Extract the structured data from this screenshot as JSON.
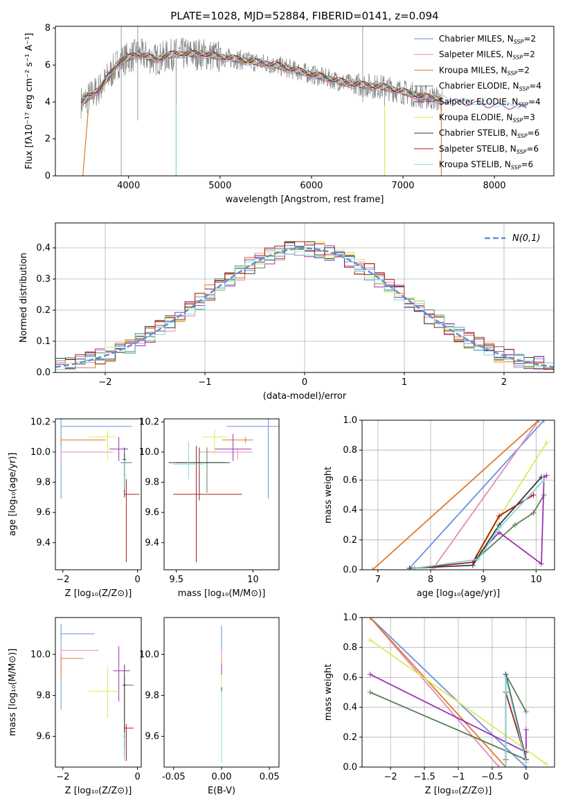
{
  "title": "PLATE=1028, MJD=52884, FIBERID=0141, z=0.094",
  "legend_top": [
    "Chabrier MILES, N_SSP=2",
    "Salpeter MILES, N_SSP=2",
    "Kroupa MILES, N_SSP=2",
    "Chabrier ELODIE, N_SSP=4",
    "Salpeter ELODIE, N_SSP=4",
    "Kroupa ELODIE, N_SSP=3",
    "Chabrier STELIB, N_SSP=6",
    "Salpeter STELIB, N_SSP=6",
    "Kroupa STELIB, N_SSP=6"
  ],
  "colors": {
    "c1": "#6b8ee0",
    "c2": "#e08bb8",
    "c3": "#e07b2a",
    "c4": "#5a7d5a",
    "c5": "#9b30b0",
    "c6": "#d6ec5a",
    "c7": "#3a3a3a",
    "c8": "#b01818",
    "c9": "#7ed8d8",
    "data": "#808080",
    "normal": "#5b8fd8"
  },
  "chart_data": [
    {
      "type": "line",
      "title": "PLATE=1028, MJD=52884, FIBERID=0141, z=0.094",
      "xlabel": "wavelength [Angstrom, rest frame]",
      "ylabel": "Flux [fλ10^-17 erg cm^-2 s^-1 A^-1]",
      "xlim": [
        3200,
        8650
      ],
      "ylim": [
        0,
        8.1
      ],
      "xticks": [
        4000,
        5000,
        6000,
        7000,
        8000
      ],
      "yticks": [
        0,
        2,
        4,
        6,
        8
      ],
      "series": [
        {
          "name": "data",
          "x": [
            3500,
            3700,
            3900,
            4100,
            4300,
            4500,
            4800,
            5200,
            5600,
            6000,
            6400,
            6800,
            7200,
            7600,
            8000,
            8400
          ],
          "y": [
            4.0,
            4.8,
            6.2,
            6.6,
            6.3,
            6.6,
            6.6,
            6.3,
            6.0,
            5.5,
            5.0,
            4.8,
            4.3,
            4.0,
            3.8,
            3.7
          ]
        }
      ]
    },
    {
      "type": "bar",
      "xlabel": "(data-model)/error",
      "ylabel": "Normed distribution",
      "xlim": [
        -2.5,
        2.5
      ],
      "ylim": [
        0,
        0.48
      ],
      "xticks": [
        -2,
        -1,
        0,
        1,
        2
      ],
      "yticks": [
        0.0,
        0.1,
        0.2,
        0.3,
        0.4
      ],
      "legend": [
        "N(0,1)"
      ]
    },
    {
      "type": "scatter",
      "xlabel": "Z [log10(Z/Z⊙)]",
      "ylabel": "age  [log10(age/yr)]",
      "xlim": [
        -2.2,
        0.1
      ],
      "ylim": [
        9.22,
        10.22
      ],
      "xticks": [
        -2,
        0
      ],
      "yticks": [
        9.4,
        9.6,
        9.8,
        10.0,
        10.2
      ]
    },
    {
      "type": "scatter",
      "xlabel": "mass [log10(M/M⊙)]",
      "xlim": [
        9.42,
        10.17
      ],
      "ylim": [
        9.22,
        10.22
      ],
      "xticks": [
        9.5,
        10.0
      ],
      "yticks": [
        9.4,
        9.6,
        9.8,
        10.0,
        10.2
      ]
    },
    {
      "type": "line",
      "xlabel": "age  [log10(age/yr)]",
      "ylabel": "mass weight",
      "xlim": [
        6.7,
        10.35
      ],
      "ylim": [
        0,
        1
      ],
      "xticks": [
        7,
        8,
        9,
        10
      ],
      "yticks": [
        0.0,
        0.2,
        0.4,
        0.6,
        0.8,
        1.0
      ]
    },
    {
      "type": "scatter",
      "xlabel": "Z [log10(Z/Z⊙)]",
      "ylabel": "mass [log10(M/M⊙)]",
      "xlim": [
        -2.2,
        0.1
      ],
      "ylim": [
        9.45,
        10.18
      ],
      "xticks": [
        -2,
        0
      ],
      "yticks": [
        9.6,
        9.8,
        10.0
      ]
    },
    {
      "type": "scatter",
      "xlabel": "E(B-V)",
      "xlim": [
        -0.06,
        0.06
      ],
      "ylim": [
        9.45,
        10.18
      ],
      "xticks": [
        -0.05,
        0.0,
        0.05
      ],
      "yticks": [
        9.6,
        9.8,
        10.0
      ]
    },
    {
      "type": "line",
      "xlabel": "Z [log10(Z/Z⊙)]",
      "ylabel": "mass weight",
      "xlim": [
        -2.42,
        0.42
      ],
      "ylim": [
        0,
        1
      ],
      "xticks": [
        -2.0,
        -1.5,
        -1.0,
        -0.5,
        0.0
      ],
      "yticks": [
        0.0,
        0.2,
        0.4,
        0.6,
        0.8,
        1.0
      ]
    }
  ]
}
